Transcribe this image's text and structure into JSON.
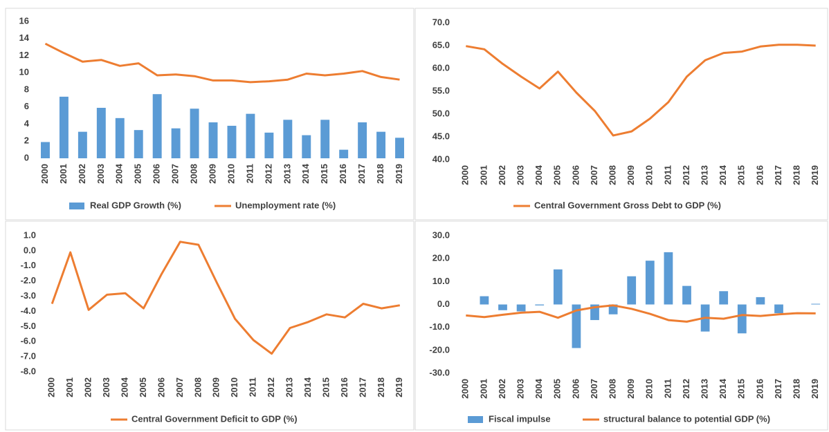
{
  "chart_data": [
    {
      "type": "combo",
      "categories": [
        "2000",
        "2001",
        "2002",
        "2003",
        "2004",
        "2005",
        "2006",
        "2007",
        "2008",
        "2009",
        "2010",
        "2011",
        "2012",
        "2013",
        "2014",
        "2015",
        "2016",
        "2017",
        "2018",
        "2019"
      ],
      "series": [
        {
          "name": "Real GDP Growth (%)",
          "kind": "bar",
          "color": "#5b9bd5",
          "values": [
            1.9,
            7.2,
            3.1,
            5.9,
            4.7,
            3.3,
            7.5,
            3.5,
            5.8,
            4.2,
            3.8,
            5.2,
            3.0,
            4.5,
            2.7,
            4.5,
            1.0,
            4.2,
            3.1,
            2.4
          ]
        },
        {
          "name": "Unemployment rate (%)",
          "kind": "line",
          "color": "#ed7d31",
          "values": [
            13.4,
            12.3,
            11.3,
            11.5,
            10.8,
            11.1,
            9.7,
            9.8,
            9.6,
            9.1,
            9.1,
            8.9,
            9.0,
            9.2,
            9.9,
            9.7,
            9.9,
            10.2,
            9.5,
            9.2
          ]
        }
      ],
      "ylim": [
        0,
        16
      ],
      "yticks": [
        0,
        2,
        4,
        6,
        8,
        10,
        12,
        14,
        16
      ],
      "legend": "bottom"
    },
    {
      "type": "line",
      "categories": [
        "2000",
        "2001",
        "2002",
        "2003",
        "2004",
        "2005",
        "2006",
        "2007",
        "2008",
        "2009",
        "2010",
        "2011",
        "2012",
        "2013",
        "2014",
        "2015",
        "2016",
        "2017",
        "2018",
        "2019"
      ],
      "series": [
        {
          "name": "Central Government Gross Debt to GDP (%)",
          "kind": "line",
          "color": "#ed7d31",
          "values": [
            64.9,
            64.2,
            61.0,
            58.2,
            55.6,
            59.3,
            54.7,
            50.7,
            45.3,
            46.2,
            49.0,
            52.6,
            58.2,
            61.8,
            63.4,
            63.7,
            64.8,
            65.2,
            65.2,
            65.0
          ]
        }
      ],
      "ylim": [
        40,
        70
      ],
      "yticks": [
        {
          "value": 40,
          "label": "40.0"
        },
        {
          "value": 45,
          "label": "45.0"
        },
        {
          "value": 50,
          "label": "50.0"
        },
        {
          "value": 55,
          "label": "55.0"
        },
        {
          "value": 60,
          "label": "60.0"
        },
        {
          "value": 65,
          "label": "65.0"
        },
        {
          "value": 70,
          "label": "70.0"
        }
      ],
      "legend": "bottom"
    },
    {
      "type": "line",
      "categories": [
        "2000",
        "2001",
        "2002",
        "2003",
        "2004",
        "2005",
        "2006",
        "2007",
        "2008",
        "2009",
        "2010",
        "2011",
        "2012",
        "2013",
        "2014",
        "2015",
        "2016",
        "2017",
        "2018",
        "2019"
      ],
      "series": [
        {
          "name": "Central Government Deficit to GDP (%)",
          "kind": "line",
          "color": "#ed7d31",
          "values": [
            -3.5,
            -0.1,
            -3.9,
            -2.9,
            -2.8,
            -3.8,
            -1.5,
            0.6,
            0.4,
            -2.1,
            -4.5,
            -5.9,
            -6.8,
            -5.1,
            -4.7,
            -4.2,
            -4.4,
            -3.5,
            -3.8,
            -3.6
          ]
        }
      ],
      "ylim": [
        -8,
        1
      ],
      "yticks": [
        {
          "value": -8,
          "label": "-8.0"
        },
        {
          "value": -7,
          "label": "-7.0"
        },
        {
          "value": -6,
          "label": "-6.0"
        },
        {
          "value": -5,
          "label": "-5.0"
        },
        {
          "value": -4,
          "label": "-4.0"
        },
        {
          "value": -3,
          "label": "-3.0"
        },
        {
          "value": -2,
          "label": "-2.0"
        },
        {
          "value": -1,
          "label": "-1.0"
        },
        {
          "value": 0,
          "label": "0.0"
        },
        {
          "value": 1,
          "label": "1.0"
        }
      ],
      "legend": "bottom"
    },
    {
      "type": "combo",
      "categories": [
        "2000",
        "2001",
        "2002",
        "2003",
        "2004",
        "2005",
        "2006",
        "2007",
        "2008",
        "2009",
        "2010",
        "2011",
        "2012",
        "2013",
        "2014",
        "2015",
        "2016",
        "2017",
        "2018",
        "2019"
      ],
      "series": [
        {
          "name": "Fiscal impulse",
          "kind": "bar",
          "color": "#5b9bd5",
          "values": [
            null,
            3.6,
            -2.5,
            -3.0,
            -0.4,
            15.3,
            -19.0,
            -6.8,
            -4.3,
            12.3,
            19.1,
            22.8,
            8.1,
            -11.8,
            5.8,
            -12.6,
            3.2,
            -3.8,
            0,
            0.3
          ]
        },
        {
          "name": "structural balance to potential GDP (%)",
          "kind": "line",
          "color": "#ed7d31",
          "values": [
            -4.8,
            -5.5,
            -4.5,
            -3.6,
            -3.2,
            -5.8,
            -2.6,
            -1.2,
            -0.4,
            -1.9,
            -4.1,
            -6.8,
            -7.5,
            -5.8,
            -6.2,
            -4.6,
            -5.0,
            -4.3,
            -3.8,
            -3.9
          ]
        }
      ],
      "ylim": [
        -30,
        30
      ],
      "yticks": [
        {
          "value": -30,
          "label": "-30.0"
        },
        {
          "value": -20,
          "label": "-20.0"
        },
        {
          "value": -10,
          "label": "-10.0"
        },
        {
          "value": 0,
          "label": "0.0"
        },
        {
          "value": 10,
          "label": "10.0"
        },
        {
          "value": 20,
          "label": "20.0"
        },
        {
          "value": 30,
          "label": "30.0"
        }
      ],
      "legend": "bottom"
    }
  ]
}
